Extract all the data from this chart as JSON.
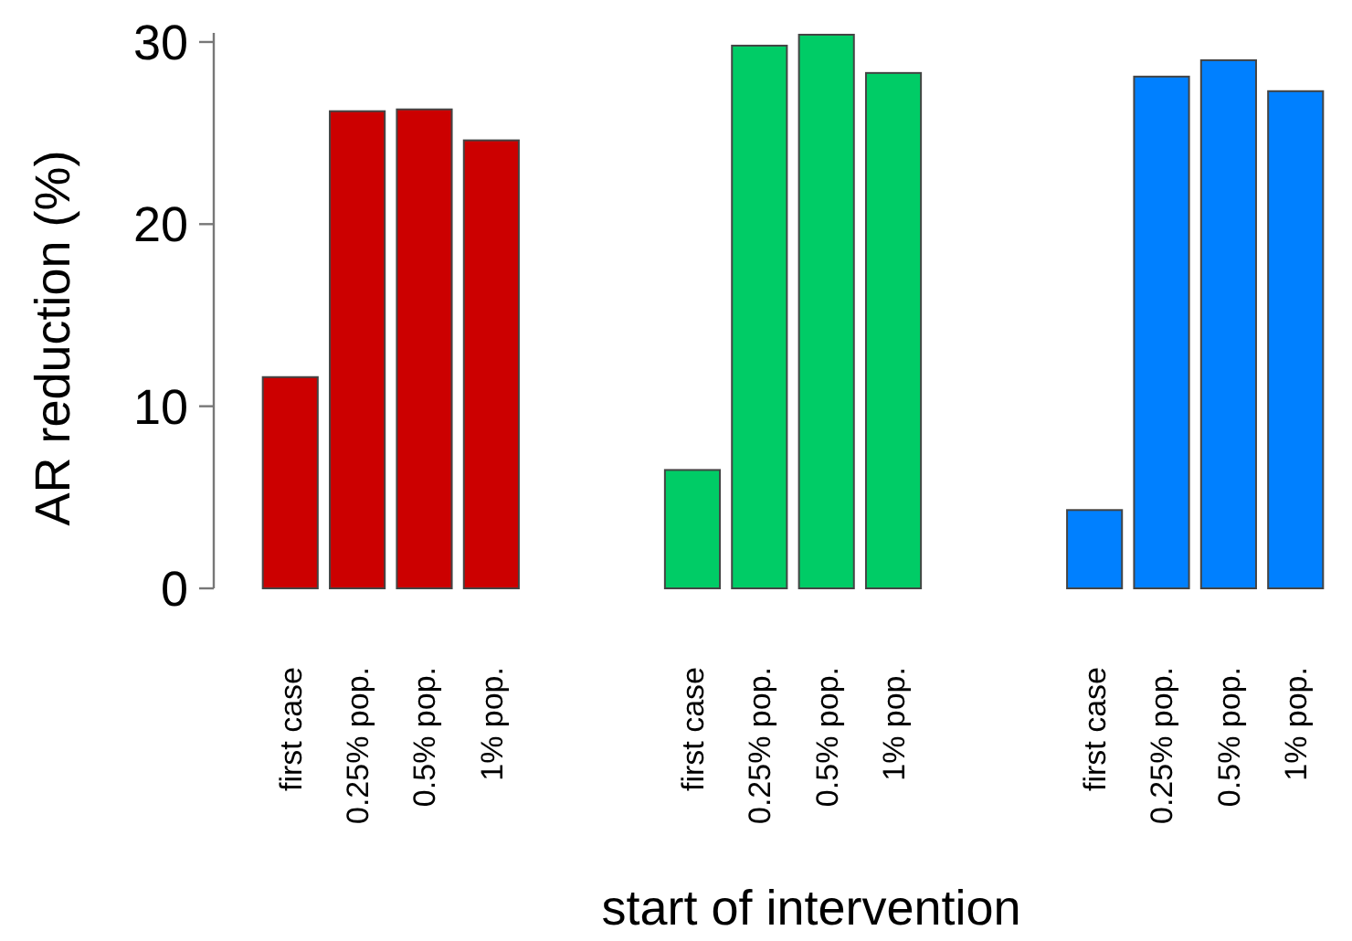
{
  "chart_data": {
    "type": "bar",
    "xlabel": "start of intervention",
    "ylabel": "AR reduction (%)",
    "categories": [
      "first case",
      "0.25% pop.",
      "0.5% pop.",
      "1% pop.",
      null,
      null,
      "first case",
      "0.25% pop.",
      "0.5% pop.",
      "1% pop.",
      null,
      null,
      "first case",
      "0.25% pop.",
      "0.5% pop.",
      "1% pop."
    ],
    "values": [
      11.6,
      26.2,
      26.3,
      24.6,
      null,
      null,
      6.5,
      29.8,
      30.4,
      28.3,
      null,
      null,
      4.3,
      28.1,
      29.0,
      27.3
    ],
    "colors": [
      "#cc0000",
      "#cc0000",
      "#cc0000",
      "#cc0000",
      null,
      null,
      "#00cc66",
      "#00cc66",
      "#00cc66",
      "#00cc66",
      null,
      null,
      "#0080ff",
      "#0080ff",
      "#0080ff",
      "#0080ff"
    ],
    "ylim": [
      0,
      30.5
    ],
    "yticks": [
      0,
      10,
      20,
      30
    ]
  }
}
